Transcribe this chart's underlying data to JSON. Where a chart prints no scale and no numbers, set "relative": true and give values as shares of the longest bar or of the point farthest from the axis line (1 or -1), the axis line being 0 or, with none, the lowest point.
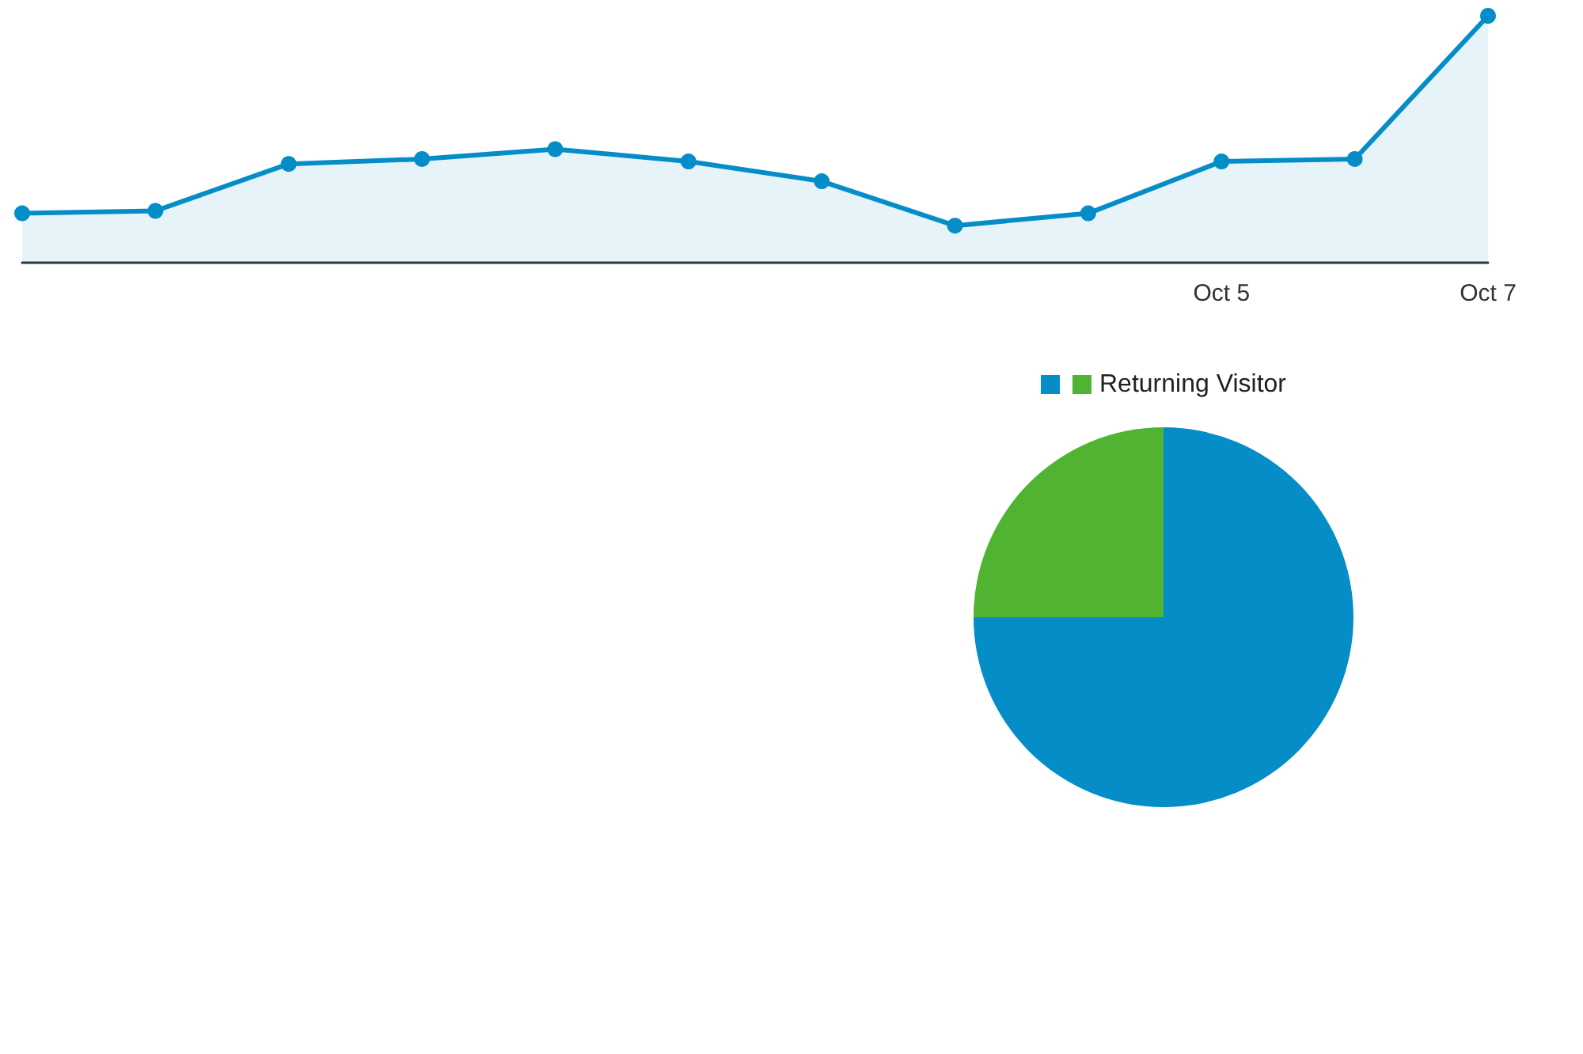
{
  "chart_data": [
    {
      "type": "area",
      "categories": [
        null,
        null,
        null,
        null,
        null,
        null,
        null,
        null,
        null,
        "Oct 5",
        null,
        "Oct 7"
      ],
      "values": [
        0.2,
        0.21,
        0.4,
        0.42,
        0.46,
        0.41,
        0.33,
        0.15,
        0.2,
        0.41,
        0.42,
        1
      ],
      "color": "#058dc7",
      "relative": true,
      "marker": "circle"
    },
    {
      "type": "pie",
      "categories": [
        null,
        "Returning Visitor"
      ],
      "values": [
        75,
        25
      ],
      "colors": [
        "#058dc7",
        "#50b432"
      ],
      "legend": "top"
    }
  ]
}
